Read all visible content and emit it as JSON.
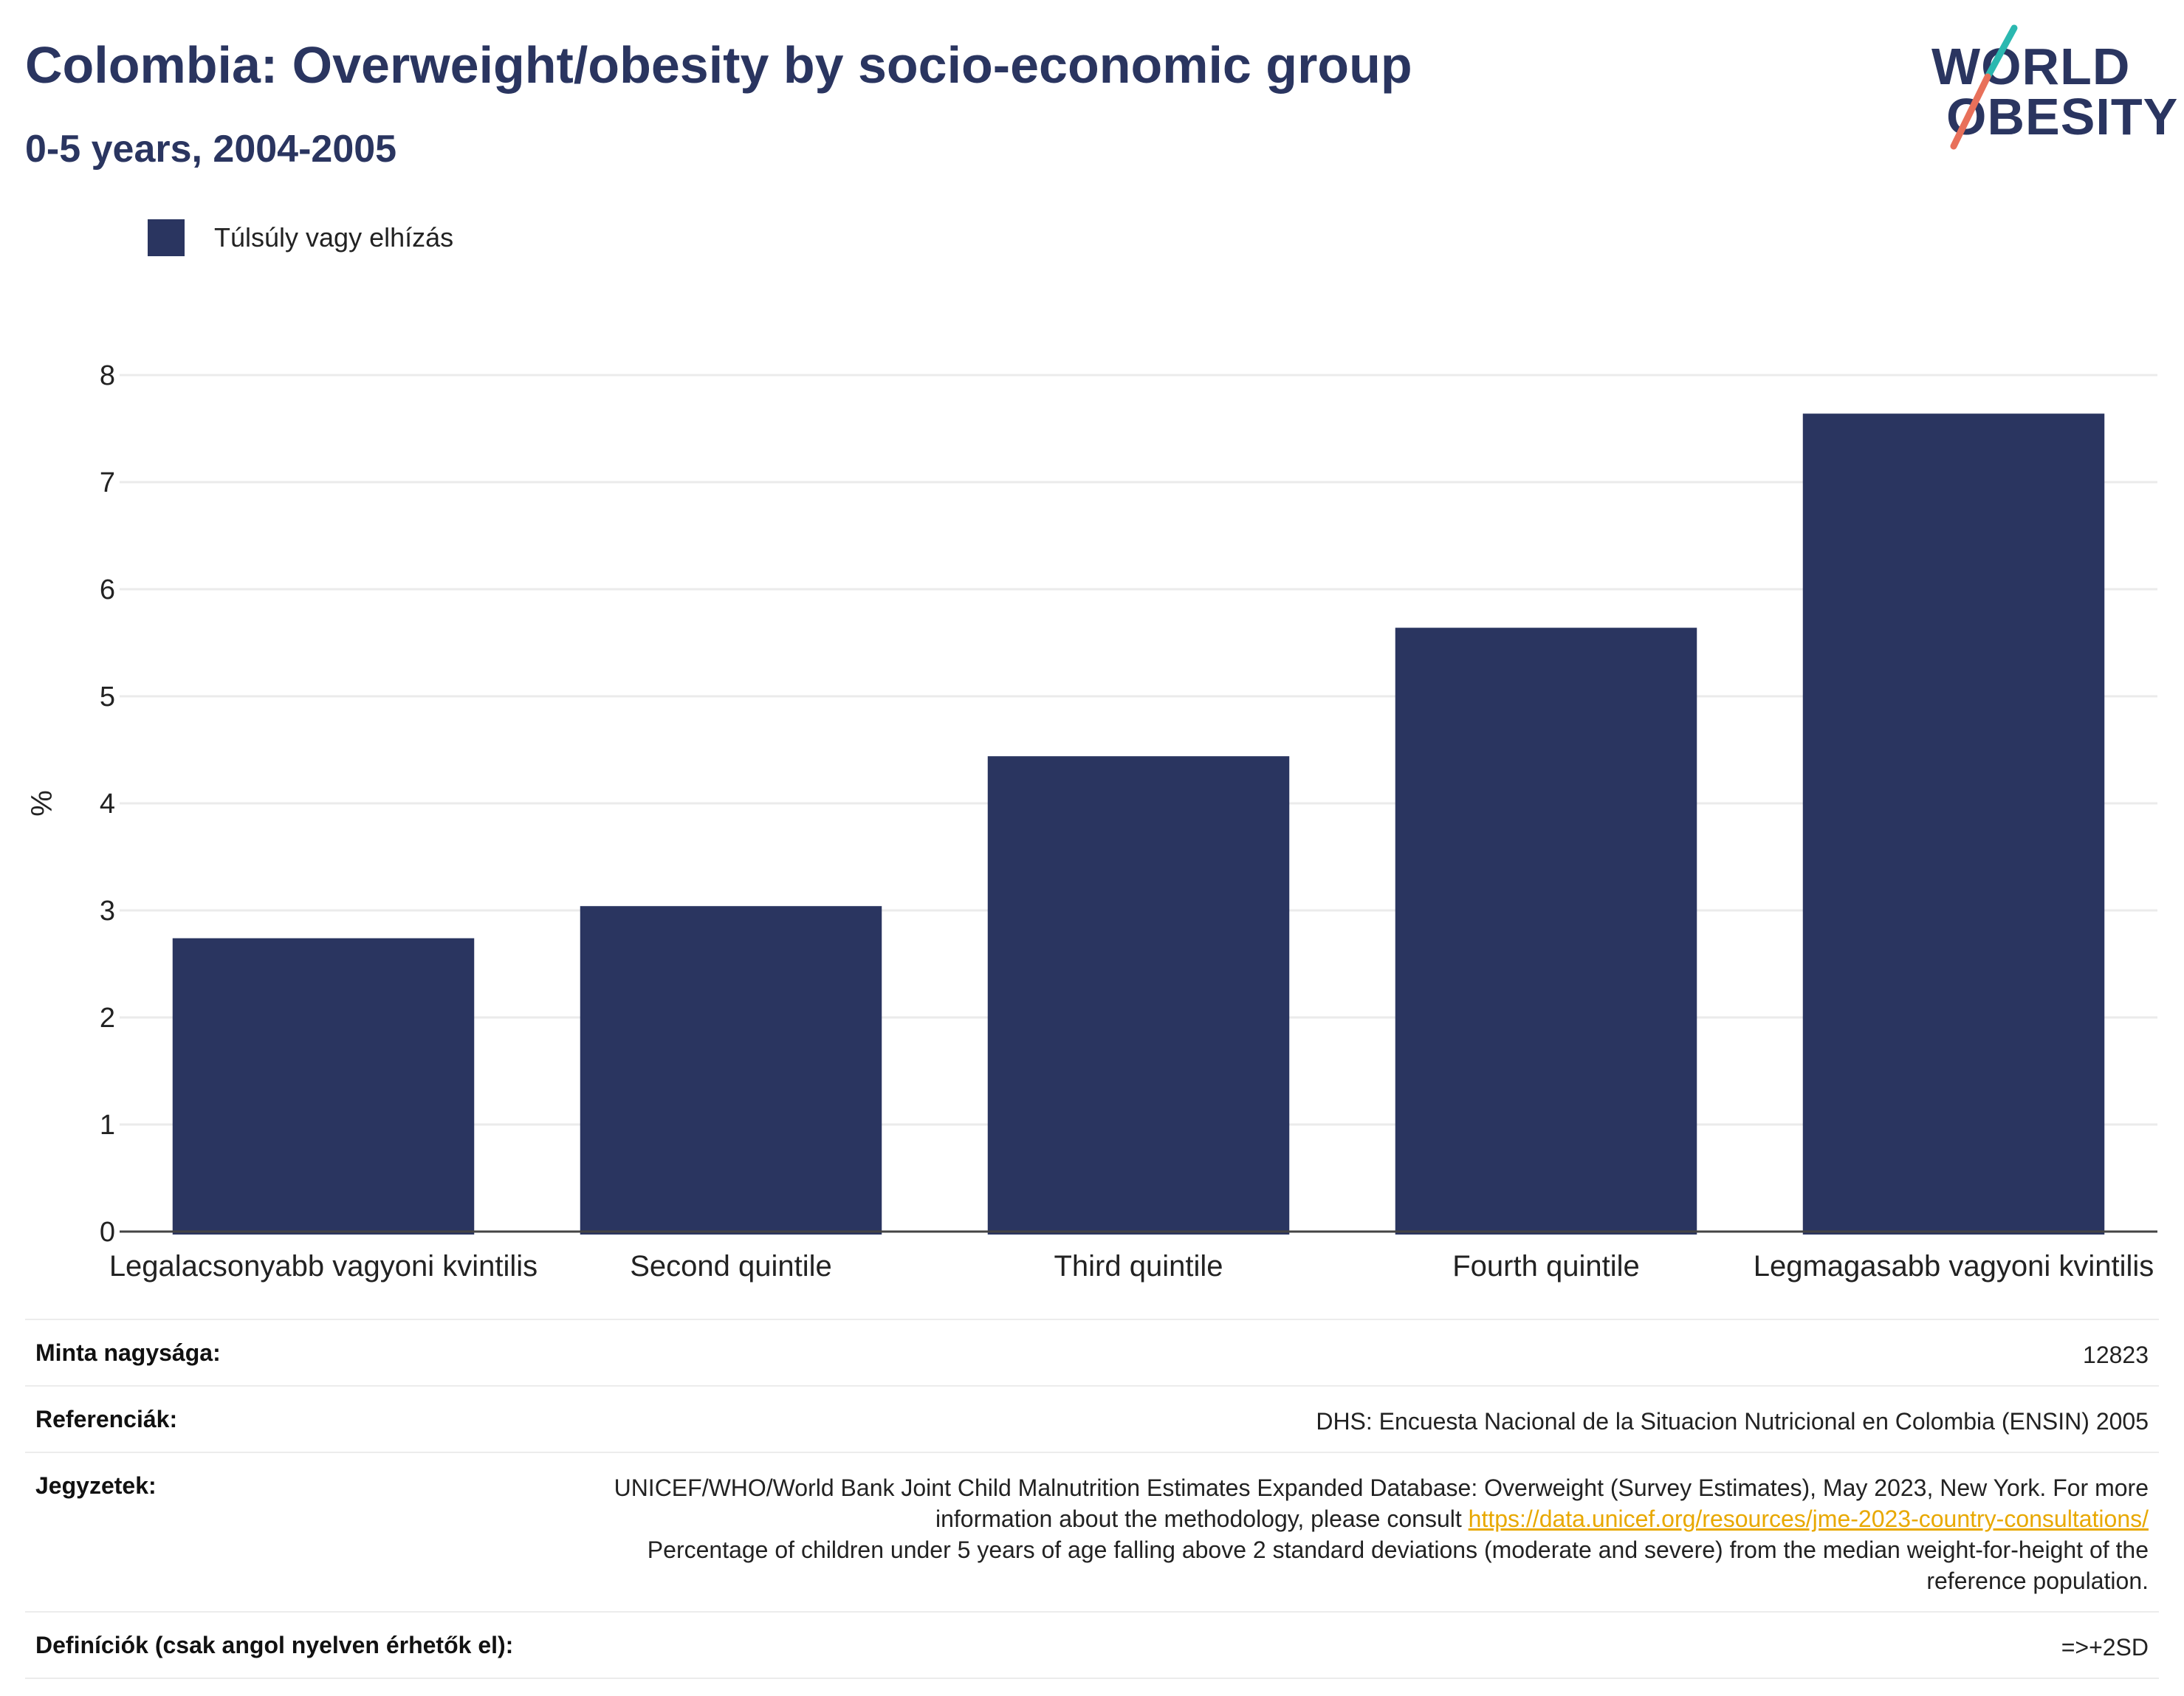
{
  "header": {
    "title": "Colombia: Overweight/obesity by socio-economic group",
    "subtitle": "0-5 years, 2004-2005"
  },
  "logo": {
    "line1": "WORLD",
    "line2": "OBESITY",
    "accent_colors": [
      "#2bb8b0",
      "#e8705a"
    ]
  },
  "colors": {
    "bar": "#2a3560",
    "text": "#2a3560",
    "grid": "#ebebeb",
    "link": "#e8a800"
  },
  "chart_data": {
    "type": "bar",
    "categories": [
      "Legalacsonyabb vagyoni kvintilis",
      "Second quintile",
      "Third quintile",
      "Fourth quintile",
      "Legmagasabb vagyoni kvintilis"
    ],
    "series": [
      {
        "name": "Túlsúly vagy elhízás",
        "values": [
          2.74,
          3.04,
          4.44,
          5.64,
          7.64
        ]
      }
    ],
    "ylabel": "%",
    "ylim": [
      0,
      8
    ],
    "yticks": [
      0,
      1,
      2,
      3,
      4,
      5,
      6,
      7,
      8
    ],
    "grid": true,
    "legend": "top-left"
  },
  "meta": {
    "sample_label": "Minta nagysága:",
    "sample_value": "12823",
    "refs_label": "Referenciák:",
    "refs_value": "DHS: Encuesta Nacional de la Situacion Nutricional en Colombia (ENSIN) 2005",
    "notes_label": "Jegyzetek:",
    "notes_text1": "UNICEF/WHO/World Bank Joint Child Malnutrition Estimates Expanded Database: Overweight (Survey Estimates), May 2023, New York. For more information about the methodology, please consult",
    "notes_link": "https://data.unicef.org/resources/jme-2023-country-consultations/",
    "notes_text2": "Percentage of children under 5 years of age falling above 2 standard deviations (moderate and severe) from the median weight-for-height of the reference population.",
    "defs_label": "Definíciók (csak angol nyelven érhetők el):",
    "defs_value": "=>+2SD"
  }
}
